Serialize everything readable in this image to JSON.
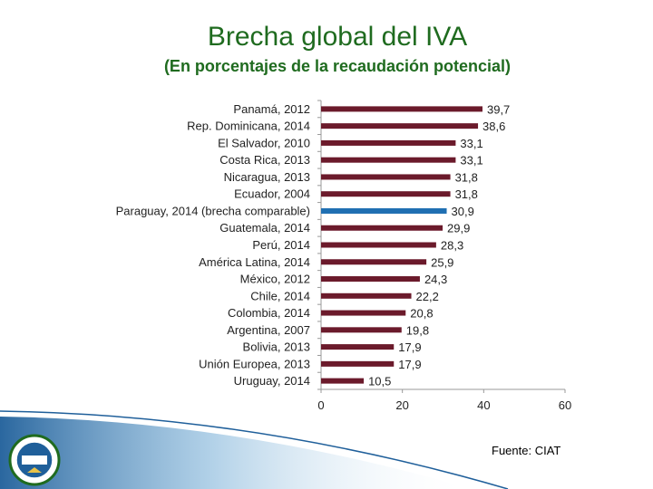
{
  "title": "Brecha global del IVA",
  "subtitle": "(En porcentajes de la recaudación potencial)",
  "source": "Fuente: CIAT",
  "colors": {
    "title": "#1f6b1f",
    "bar": "#6b1a2b",
    "highlight_bar": "#1f6fb2",
    "decor": "#1f5f9a"
  },
  "chart_data": {
    "type": "bar",
    "orientation": "horizontal",
    "title": "Brecha global del IVA",
    "subtitle": "(En porcentajes de la recaudación potencial)",
    "categories": [
      "Panamá, 2012",
      "Rep. Dominicana, 2014",
      "El Salvador, 2010",
      "Costa Rica, 2013",
      "Nicaragua, 2013",
      "Ecuador, 2004",
      "Paraguay, 2014 (brecha comparable)",
      "Guatemala, 2014",
      "Perú, 2014",
      "América Latina, 2014",
      "México, 2012",
      "Chile, 2014",
      "Colombia, 2014",
      "Argentina, 2007",
      "Bolivia, 2013",
      "Unión Europea, 2013",
      "Uruguay, 2014"
    ],
    "values": [
      39.7,
      38.6,
      33.1,
      33.1,
      31.8,
      31.8,
      30.9,
      29.9,
      28.3,
      25.9,
      24.3,
      22.2,
      20.8,
      19.8,
      17.9,
      17.9,
      10.5
    ],
    "value_labels": [
      "39,7",
      "38,6",
      "33,1",
      "33,1",
      "31,8",
      "31,8",
      "30,9",
      "29,9",
      "28,3",
      "25,9",
      "24,3",
      "22,2",
      "20,8",
      "19,8",
      "17,9",
      "17,9",
      "10,5"
    ],
    "highlight_category": "Paraguay, 2014 (brecha comparable)",
    "xlim": [
      0,
      60
    ],
    "xticks": [
      "0",
      "20",
      "40",
      "60"
    ],
    "grid": false,
    "legend": "none"
  }
}
